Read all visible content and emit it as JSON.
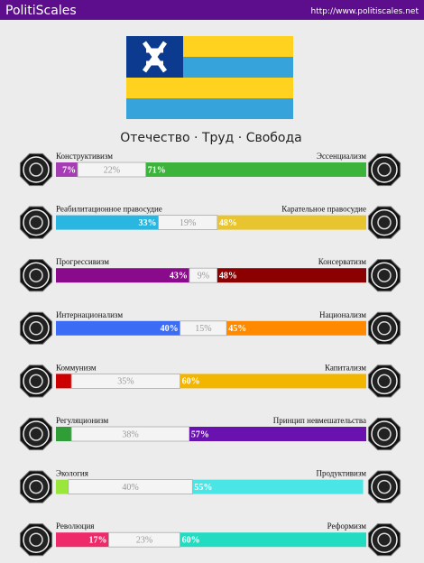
{
  "header": {
    "title": "PolitiScales",
    "url": "http://www.politiscales.net"
  },
  "slogan": "Отечество · Труд · Свобода",
  "axes": [
    {
      "left": {
        "name": "Конструктивизм",
        "value": 7,
        "label": "7%",
        "color": "#a63cb4"
      },
      "neutral": {
        "value": 22,
        "label": "22%"
      },
      "right": {
        "name": "Эссенциализм",
        "value": 71,
        "label": "71%",
        "color": "#3cb43c"
      }
    },
    {
      "left": {
        "name": "Реабилитационное правосудие",
        "value": 33,
        "label": "33%",
        "color": "#29b6e0"
      },
      "neutral": {
        "value": 19,
        "label": "19%"
      },
      "right": {
        "name": "Карательное правосудие",
        "value": 48,
        "label": "48%",
        "color": "#e8c52e"
      }
    },
    {
      "left": {
        "name": "Прогрессивизм",
        "value": 43,
        "label": "43%",
        "color": "#8a0a8c"
      },
      "neutral": {
        "value": 9,
        "label": "9%"
      },
      "right": {
        "name": "Консерватизм",
        "value": 48,
        "label": "48%",
        "color": "#8b0000"
      }
    },
    {
      "left": {
        "name": "Интернационализм",
        "value": 40,
        "label": "40%",
        "color": "#3a6cf5"
      },
      "neutral": {
        "value": 15,
        "label": "15%"
      },
      "right": {
        "name": "Национализм",
        "value": 45,
        "label": "45%",
        "color": "#ff8a00"
      }
    },
    {
      "left": {
        "name": "Коммунизм",
        "value": 5,
        "color": "#cc0000"
      },
      "neutral": {
        "value": 35,
        "label": "35%"
      },
      "right": {
        "name": "Капитализм",
        "value": 60,
        "label": "60%",
        "color": "#f2b600"
      }
    },
    {
      "left": {
        "name": "Регуляционизм",
        "value": 5,
        "color": "#2f9e37"
      },
      "neutral": {
        "value": 38,
        "label": "38%"
      },
      "right": {
        "name": "Принцип невмешательства",
        "value": 57,
        "label": "57%",
        "color": "#6a12b0"
      }
    },
    {
      "left": {
        "name": "Экология",
        "value": 4,
        "color": "#9be63a"
      },
      "neutral": {
        "value": 40,
        "label": "40%"
      },
      "right": {
        "name": "Продуктивизм",
        "value": 55,
        "label": "55%",
        "color": "#4ae6e6"
      }
    },
    {
      "left": {
        "name": "Революция",
        "value": 17,
        "label": "17%",
        "color": "#ee2a6a"
      },
      "neutral": {
        "value": 23,
        "label": "23%"
      },
      "right": {
        "name": "Реформизм",
        "value": 60,
        "label": "60%",
        "color": "#22dcc2"
      }
    }
  ]
}
